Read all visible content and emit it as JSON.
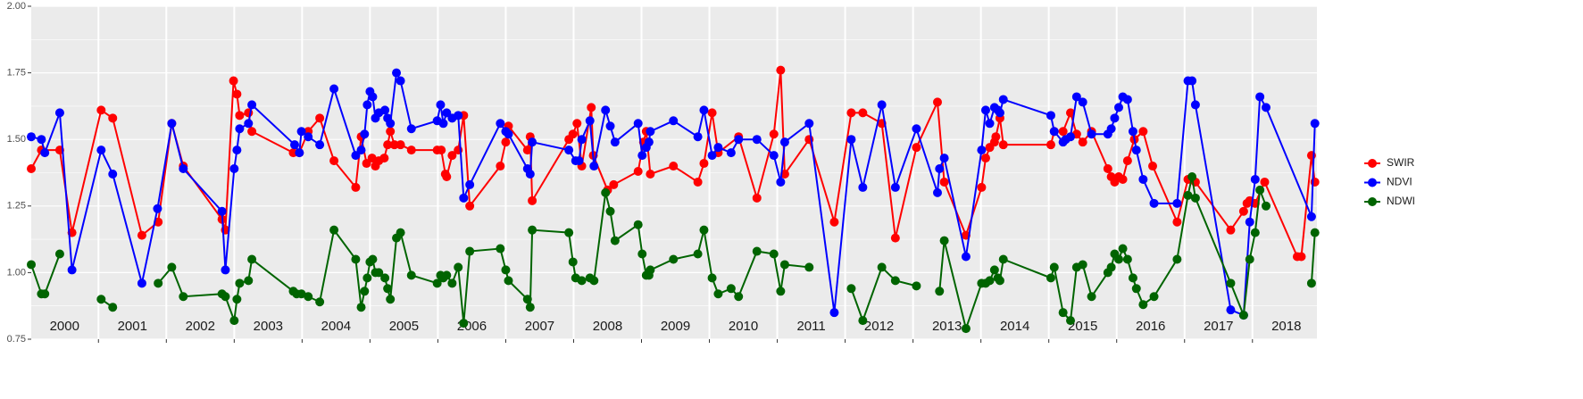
{
  "chart_data": {
    "type": "line",
    "ylim": [
      0.75,
      2.0
    ],
    "yticks": [
      {
        "value": 0.75,
        "label": "0.75"
      },
      {
        "value": 1.0,
        "label": "1.00"
      },
      {
        "value": 1.25,
        "label": "1.25"
      },
      {
        "value": 1.5,
        "label": "1.50"
      },
      {
        "value": 1.75,
        "label": "1.75"
      },
      {
        "value": 2.0,
        "label": "2.00"
      }
    ],
    "xlim": [
      2000.01,
      2018.95
    ],
    "xticks": [
      {
        "value": 2000.5,
        "label": "2000"
      },
      {
        "value": 2001.5,
        "label": "2001"
      },
      {
        "value": 2002.5,
        "label": "2002"
      },
      {
        "value": 2003.5,
        "label": "2003"
      },
      {
        "value": 2004.5,
        "label": "2004"
      },
      {
        "value": 2005.5,
        "label": "2005"
      },
      {
        "value": 2006.5,
        "label": "2006"
      },
      {
        "value": 2007.5,
        "label": "2007"
      },
      {
        "value": 2008.5,
        "label": "2008"
      },
      {
        "value": 2009.5,
        "label": "2009"
      },
      {
        "value": 2010.5,
        "label": "2010"
      },
      {
        "value": 2011.5,
        "label": "2011"
      },
      {
        "value": 2012.5,
        "label": "2012"
      },
      {
        "value": 2013.5,
        "label": "2013"
      },
      {
        "value": 2014.5,
        "label": "2014"
      },
      {
        "value": 2015.5,
        "label": "2015"
      },
      {
        "value": 2016.5,
        "label": "2016"
      },
      {
        "value": 2017.5,
        "label": "2017"
      },
      {
        "value": 2018.5,
        "label": "2018"
      }
    ],
    "year_boundaries": [
      2001,
      2002,
      2003,
      2004,
      2005,
      2006,
      2007,
      2008,
      2009,
      2010,
      2011,
      2012,
      2013,
      2014,
      2015,
      2016,
      2017,
      2018
    ],
    "grid": true,
    "legend": "right",
    "series": [
      {
        "name": "SWIR",
        "color": "#ff0000",
        "x": [
          2000.01,
          2000.16,
          2000.43,
          2000.61,
          2001.04,
          2001.21,
          2001.64,
          2001.88,
          2002.08,
          2002.25,
          2002.82,
          2002.87,
          2002.99,
          2003.04,
          2003.08,
          2003.21,
          2003.26,
          2003.87,
          2003.96,
          2004.09,
          2004.26,
          2004.47,
          2004.79,
          2004.87,
          2004.95,
          2005.03,
          2005.08,
          2005.13,
          2005.21,
          2005.26,
          2005.3,
          2005.36,
          2005.45,
          2005.61,
          2005.99,
          2006.05,
          2006.11,
          2006.13,
          2006.21,
          2006.3,
          2006.38,
          2006.47,
          2006.92,
          2007.0,
          2007.04,
          2007.32,
          2007.36,
          2007.39,
          2007.93,
          2007.99,
          2008.05,
          2008.12,
          2008.26,
          2008.29,
          2008.5,
          2008.59,
          2008.95,
          2009.03,
          2009.07,
          2009.13,
          2009.47,
          2009.83,
          2009.92,
          2010.04,
          2010.13,
          2010.43,
          2010.7,
          2010.95,
          2011.05,
          2011.11,
          2011.47,
          2011.84,
          2012.09,
          2012.26,
          2012.54,
          2012.74,
          2013.05,
          2013.36,
          2013.46,
          2013.78,
          2014.01,
          2014.07,
          2014.13,
          2014.2,
          2014.22,
          2014.28,
          2014.33,
          2015.03,
          2015.08,
          2015.21,
          2015.32,
          2015.41,
          2015.5,
          2015.63,
          2015.87,
          2015.92,
          2015.97,
          2016.03,
          2016.09,
          2016.16,
          2016.26,
          2016.39,
          2016.53,
          2016.89,
          2017.05,
          2017.16,
          2017.68,
          2017.87,
          2017.92,
          2017.96,
          2018.04,
          2018.18,
          2018.66,
          2018.72,
          2018.87,
          2018.92
        ],
        "values": [
          1.39,
          1.46,
          1.46,
          1.15,
          1.61,
          1.58,
          1.14,
          1.19,
          1.56,
          1.4,
          1.2,
          1.16,
          1.72,
          1.67,
          1.59,
          1.6,
          1.53,
          1.45,
          1.45,
          1.53,
          1.58,
          1.42,
          1.32,
          1.51,
          1.41,
          1.43,
          1.4,
          1.42,
          1.43,
          1.48,
          1.53,
          1.48,
          1.48,
          1.46,
          1.46,
          1.46,
          1.37,
          1.36,
          1.44,
          1.46,
          1.59,
          1.25,
          1.4,
          1.49,
          1.55,
          1.46,
          1.51,
          1.27,
          1.5,
          1.52,
          1.56,
          1.4,
          1.62,
          1.44,
          1.31,
          1.33,
          1.38,
          1.49,
          1.53,
          1.37,
          1.4,
          1.34,
          1.41,
          1.6,
          1.45,
          1.51,
          1.28,
          1.52,
          1.76,
          1.37,
          1.5,
          1.19,
          1.6,
          1.6,
          1.56,
          1.13,
          1.47,
          1.64,
          1.34,
          1.14,
          1.32,
          1.43,
          1.47,
          1.49,
          1.51,
          1.58,
          1.48,
          1.48,
          1.53,
          1.53,
          1.6,
          1.52,
          1.49,
          1.53,
          1.39,
          1.36,
          1.34,
          1.36,
          1.35,
          1.42,
          1.5,
          1.53,
          1.4,
          1.19,
          1.35,
          1.34,
          1.16,
          1.23,
          1.26,
          1.27,
          1.26,
          1.34,
          1.06,
          1.06,
          1.44,
          1.34
        ]
      },
      {
        "name": "NDVI",
        "color": "#0000ff",
        "x": [
          2000.01,
          2000.16,
          2000.21,
          2000.43,
          2000.61,
          2001.04,
          2001.21,
          2001.64,
          2001.87,
          2002.08,
          2002.25,
          2002.82,
          2002.87,
          2003.0,
          2003.04,
          2003.08,
          2003.21,
          2003.26,
          2003.89,
          2003.96,
          2003.99,
          2004.09,
          2004.26,
          2004.47,
          2004.79,
          2004.87,
          2004.92,
          2004.96,
          2005.0,
          2005.04,
          2005.08,
          2005.13,
          2005.22,
          2005.26,
          2005.3,
          2005.39,
          2005.45,
          2005.61,
          2005.99,
          2006.04,
          2006.08,
          2006.13,
          2006.21,
          2006.3,
          2006.38,
          2006.47,
          2006.92,
          2007.0,
          2007.04,
          2007.32,
          2007.36,
          2007.39,
          2007.93,
          2008.03,
          2008.08,
          2008.12,
          2008.24,
          2008.3,
          2008.47,
          2008.54,
          2008.61,
          2008.95,
          2009.01,
          2009.07,
          2009.11,
          2009.13,
          2009.47,
          2009.83,
          2009.92,
          2010.04,
          2010.13,
          2010.32,
          2010.43,
          2010.7,
          2010.95,
          2011.05,
          2011.11,
          2011.47,
          2011.84,
          2012.09,
          2012.26,
          2012.54,
          2012.74,
          2013.05,
          2013.36,
          2013.39,
          2013.46,
          2013.78,
          2014.01,
          2014.07,
          2014.13,
          2014.2,
          2014.25,
          2014.28,
          2014.33,
          2015.03,
          2015.08,
          2015.21,
          2015.25,
          2015.32,
          2015.41,
          2015.5,
          2015.63,
          2015.87,
          2015.92,
          2015.97,
          2016.03,
          2016.09,
          2016.16,
          2016.24,
          2016.29,
          2016.39,
          2016.55,
          2016.89,
          2017.05,
          2017.11,
          2017.16,
          2017.68,
          2017.87,
          2017.96,
          2018.04,
          2018.11,
          2018.2,
          2018.87,
          2018.92
        ],
        "values": [
          1.51,
          1.5,
          1.45,
          1.6,
          1.01,
          1.46,
          1.37,
          0.96,
          1.24,
          1.56,
          1.39,
          1.23,
          1.01,
          1.39,
          1.46,
          1.54,
          1.56,
          1.63,
          1.48,
          1.45,
          1.53,
          1.51,
          1.48,
          1.69,
          1.44,
          1.46,
          1.52,
          1.63,
          1.68,
          1.66,
          1.58,
          1.6,
          1.61,
          1.58,
          1.56,
          1.75,
          1.72,
          1.54,
          1.57,
          1.63,
          1.56,
          1.6,
          1.58,
          1.59,
          1.28,
          1.33,
          1.56,
          1.53,
          1.52,
          1.39,
          1.37,
          1.49,
          1.46,
          1.42,
          1.42,
          1.5,
          1.57,
          1.4,
          1.61,
          1.55,
          1.49,
          1.56,
          1.44,
          1.47,
          1.49,
          1.53,
          1.57,
          1.51,
          1.61,
          1.44,
          1.47,
          1.45,
          1.5,
          1.5,
          1.44,
          1.34,
          1.49,
          1.56,
          0.85,
          1.5,
          1.32,
          1.63,
          1.32,
          1.54,
          1.3,
          1.39,
          1.43,
          1.06,
          1.46,
          1.61,
          1.56,
          1.62,
          1.61,
          1.6,
          1.65,
          1.59,
          1.53,
          1.49,
          1.5,
          1.51,
          1.66,
          1.64,
          1.52,
          1.52,
          1.54,
          1.58,
          1.62,
          1.66,
          1.65,
          1.53,
          1.46,
          1.35,
          1.26,
          1.26,
          1.72,
          1.72,
          1.63,
          0.86,
          0.84,
          1.19,
          1.35,
          1.66,
          1.62,
          1.21,
          1.56
        ]
      },
      {
        "name": "NDWI",
        "color": "#006400",
        "x": [
          2000.01,
          2000.16,
          2000.21,
          2000.43,
          null,
          2001.04,
          2001.21,
          null,
          2001.88,
          2002.08,
          2002.25,
          2002.82,
          2002.87,
          2003.0,
          2003.04,
          2003.08,
          2003.21,
          2003.26,
          2003.87,
          2003.92,
          2003.99,
          2004.09,
          2004.26,
          2004.47,
          2004.79,
          2004.87,
          2004.92,
          2004.96,
          2005.0,
          2005.04,
          2005.08,
          2005.13,
          2005.22,
          2005.26,
          2005.3,
          2005.39,
          2005.45,
          2005.61,
          2005.99,
          2006.04,
          2006.08,
          2006.13,
          2006.21,
          2006.3,
          2006.38,
          2006.47,
          2006.92,
          2007.0,
          2007.04,
          2007.32,
          2007.36,
          2007.39,
          2007.93,
          2007.99,
          2008.03,
          2008.12,
          2008.24,
          2008.3,
          2008.47,
          2008.54,
          2008.61,
          2008.95,
          2009.01,
          2009.07,
          2009.11,
          2009.13,
          2009.47,
          2009.83,
          2009.92,
          2010.04,
          2010.13,
          2010.32,
          2010.43,
          2010.7,
          2010.95,
          2011.05,
          2011.11,
          2011.47,
          null,
          2012.09,
          2012.26,
          2012.54,
          2012.74,
          2013.05,
          null,
          2013.39,
          2013.46,
          2013.78,
          2014.01,
          2014.07,
          2014.13,
          2014.2,
          2014.25,
          2014.28,
          2014.33,
          2015.03,
          2015.08,
          2015.21,
          2015.32,
          2015.41,
          2015.5,
          2015.63,
          2015.87,
          2015.92,
          2015.97,
          2016.03,
          2016.09,
          2016.16,
          2016.24,
          2016.29,
          2016.39,
          2016.55,
          2016.89,
          2017.05,
          2017.11,
          2017.16,
          2017.68,
          2017.87,
          2017.96,
          2018.04,
          2018.11,
          2018.2,
          null,
          2018.87,
          2018.92
        ],
        "values": [
          1.03,
          0.92,
          0.92,
          1.07,
          null,
          0.9,
          0.87,
          null,
          0.96,
          1.02,
          0.91,
          0.92,
          0.91,
          0.82,
          0.9,
          0.96,
          0.97,
          1.05,
          0.93,
          0.92,
          0.92,
          0.91,
          0.89,
          1.16,
          1.05,
          0.87,
          0.93,
          0.98,
          1.04,
          1.05,
          1.0,
          1.0,
          0.98,
          0.94,
          0.9,
          1.13,
          1.15,
          0.99,
          0.96,
          0.99,
          0.98,
          0.99,
          0.96,
          1.02,
          0.81,
          1.08,
          1.09,
          1.01,
          0.97,
          0.9,
          0.87,
          1.16,
          1.15,
          1.04,
          0.98,
          0.97,
          0.98,
          0.97,
          1.3,
          1.23,
          1.12,
          1.18,
          1.07,
          0.99,
          0.99,
          1.01,
          1.05,
          1.07,
          1.16,
          0.98,
          0.92,
          0.94,
          0.91,
          1.08,
          1.07,
          0.93,
          1.03,
          1.02,
          null,
          0.94,
          0.82,
          1.02,
          0.97,
          0.95,
          null,
          0.93,
          1.12,
          0.79,
          0.96,
          0.96,
          0.97,
          1.01,
          0.98,
          0.97,
          1.05,
          0.98,
          1.02,
          0.85,
          0.82,
          1.02,
          1.03,
          0.91,
          1.0,
          1.02,
          1.07,
          1.05,
          1.09,
          1.05,
          0.98,
          0.94,
          0.88,
          0.91,
          1.05,
          1.29,
          1.36,
          1.28,
          0.96,
          0.84,
          1.05,
          1.15,
          1.31,
          1.25,
          null,
          0.96,
          1.15
        ]
      }
    ]
  }
}
